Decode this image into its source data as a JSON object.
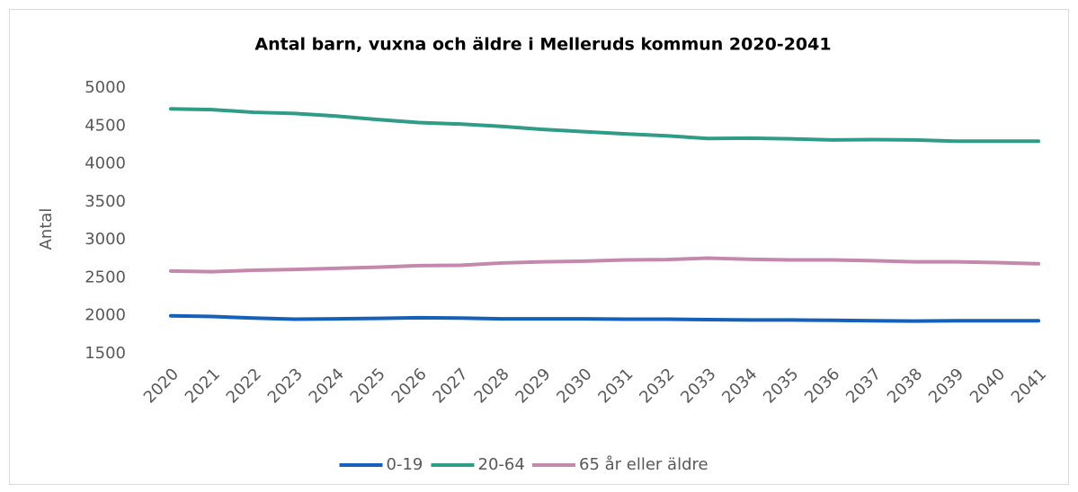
{
  "chart_data": {
    "type": "line",
    "title": "Antal barn, vuxna och äldre i Melleruds kommun 2020-2041",
    "y_label": "Antal",
    "categories": [
      "2020",
      "2021",
      "2022",
      "2023",
      "2024",
      "2025",
      "2026",
      "2027",
      "2028",
      "2029",
      "2030",
      "2031",
      "2032",
      "2033",
      "2034",
      "2035",
      "2036",
      "2037",
      "2038",
      "2039",
      "2040",
      "2041"
    ],
    "series": [
      {
        "name": "0-19",
        "color": "#1560b8",
        "values": [
          2000,
          1990,
          1970,
          1955,
          1960,
          1965,
          1975,
          1970,
          1960,
          1960,
          1960,
          1955,
          1955,
          1950,
          1945,
          1945,
          1940,
          1935,
          1930,
          1935,
          1935,
          1935
        ]
      },
      {
        "name": "20-64",
        "color": "#2e9c86",
        "values": [
          4725,
          4715,
          4680,
          4665,
          4630,
          4585,
          4545,
          4525,
          4495,
          4455,
          4425,
          4395,
          4370,
          4335,
          4340,
          4330,
          4315,
          4320,
          4315,
          4300,
          4300,
          4300
        ]
      },
      {
        "name": "65 år eller äldre",
        "color": "#c588ad",
        "values": [
          2590,
          2580,
          2600,
          2610,
          2625,
          2640,
          2660,
          2665,
          2695,
          2710,
          2720,
          2735,
          2740,
          2760,
          2745,
          2735,
          2735,
          2725,
          2710,
          2710,
          2700,
          2685
        ]
      }
    ],
    "ylim": [
      1500,
      5000
    ],
    "yticks": [
      1500,
      2000,
      2500,
      3000,
      3500,
      4000,
      4500,
      5000
    ],
    "grid": false,
    "legend": "bottom"
  }
}
